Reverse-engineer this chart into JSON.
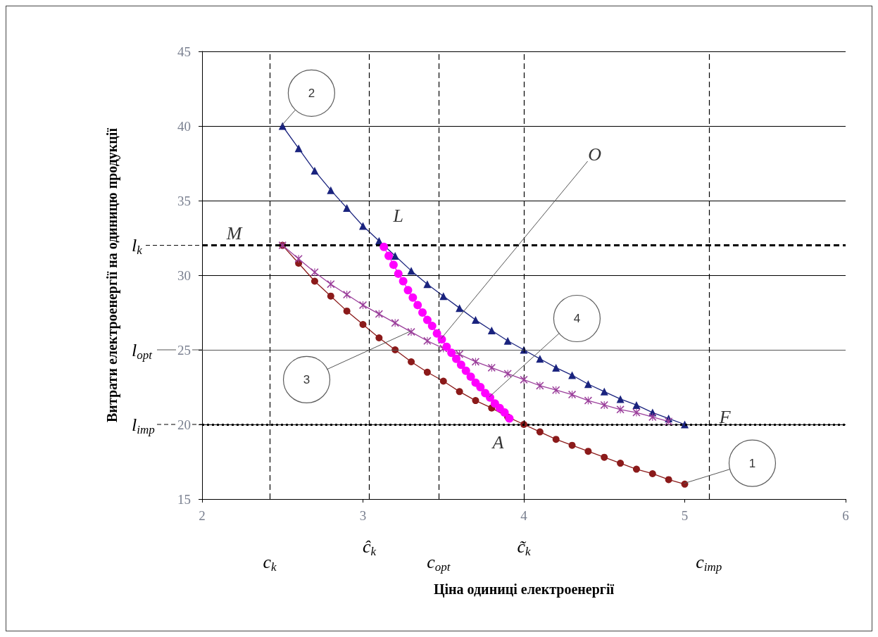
{
  "chart_data": {
    "type": "line",
    "xlabel": "Ціна одиниці електроенергії",
    "ylabel": "Витрати електроенергії на одиницю продукції",
    "xlim": [
      2,
      6
    ],
    "xticks": [
      2,
      3,
      4,
      5,
      6
    ],
    "ylim": [
      15,
      45
    ],
    "yticks": [
      15,
      20,
      25,
      30,
      35,
      40,
      45
    ],
    "grid": "y",
    "series": [
      {
        "color": "#8b1a1a",
        "marker": "circle",
        "x": [
          2.5,
          2.6,
          2.7,
          2.8,
          2.9,
          3.0,
          3.1,
          3.2,
          3.3,
          3.4,
          3.5,
          3.6,
          3.7,
          3.8,
          3.9,
          4.0,
          4.1,
          4.2,
          4.3,
          4.4,
          4.5,
          4.6,
          4.7,
          4.8,
          4.9,
          5.0
        ],
        "values": [
          32,
          30.8,
          29.6,
          28.6,
          27.6,
          26.7,
          25.8,
          25,
          24.2,
          23.5,
          22.9,
          22.2,
          21.6,
          21.1,
          20.5,
          20,
          19.5,
          19,
          18.6,
          18.2,
          17.8,
          17.4,
          17,
          16.7,
          16.3,
          16
        ]
      },
      {
        "color": "#1a237e",
        "marker": "triangle",
        "x": [
          2.5,
          2.6,
          2.7,
          2.8,
          2.9,
          3.0,
          3.1,
          3.2,
          3.3,
          3.4,
          3.5,
          3.6,
          3.7,
          3.8,
          3.9,
          4.0,
          4.1,
          4.2,
          4.3,
          4.4,
          4.5,
          4.6,
          4.7,
          4.8,
          4.9,
          5.0
        ],
        "values": [
          40,
          38.5,
          37,
          35.7,
          34.5,
          33.3,
          32.3,
          31.3,
          30.3,
          29.4,
          28.6,
          27.8,
          27,
          26.3,
          25.6,
          25,
          24.4,
          23.8,
          23.3,
          22.7,
          22.2,
          21.7,
          21.3,
          20.8,
          20.4,
          20
        ]
      },
      {
        "color": "#9b3f9b",
        "marker": "cross",
        "x": [
          2.5,
          2.6,
          2.7,
          2.8,
          2.9,
          3.0,
          3.1,
          3.2,
          3.3,
          3.4,
          3.5,
          3.6,
          3.7,
          3.8,
          3.9,
          4.0,
          4.1,
          4.2,
          4.3,
          4.4,
          4.5,
          4.6,
          4.7,
          4.8,
          4.9
        ],
        "values": [
          32,
          31.1,
          30.2,
          29.4,
          28.7,
          28,
          27.4,
          26.8,
          26.2,
          25.6,
          25.1,
          24.7,
          24.2,
          23.8,
          23.4,
          23,
          22.6,
          22.3,
          22,
          21.6,
          21.3,
          21,
          20.8,
          20.5,
          20.2
        ]
      },
      {
        "color": "#ff00ff",
        "marker": "circle",
        "x": [
          3.13,
          3.16,
          3.19,
          3.22,
          3.25,
          3.28,
          3.31,
          3.34,
          3.37,
          3.4,
          3.43,
          3.46,
          3.49,
          3.52,
          3.55,
          3.58,
          3.61,
          3.64,
          3.67,
          3.7,
          3.73,
          3.76,
          3.79,
          3.82,
          3.85,
          3.88,
          3.91
        ],
        "values": [
          31.9,
          31.3,
          30.7,
          30.1,
          29.6,
          29,
          28.5,
          28,
          27.5,
          27,
          26.6,
          26.1,
          25.7,
          25.2,
          24.8,
          24.4,
          24,
          23.6,
          23.2,
          22.8,
          22.5,
          22.1,
          21.8,
          21.4,
          21.1,
          20.8,
          20.4
        ]
      }
    ],
    "ref_lines": [
      {
        "axis": "y",
        "value": 32,
        "label": "l$_{k}$",
        "line_style": "dashed",
        "color": "#000000"
      },
      {
        "axis": "y",
        "value": 25,
        "label": "l$_{opt}$",
        "line_style": "solid",
        "color": "#555555"
      },
      {
        "axis": "y",
        "value": 20,
        "label": "l$_{imp}$",
        "line_style": "dotted",
        "color": "#000000"
      },
      {
        "axis": "x",
        "value": 2.42,
        "label": "c$_{k}$",
        "line_style": "dashed",
        "color": "#000000"
      },
      {
        "axis": "x",
        "value": 3.04,
        "label": "ĉ$_{k}$",
        "line_style": "dashed",
        "color": "#000000"
      },
      {
        "axis": "x",
        "value": 3.47,
        "label": "c$_{opt}$",
        "line_style": "dashed",
        "color": "#000000"
      },
      {
        "axis": "x",
        "value": 4.0,
        "label": "c̃$_{k}$",
        "line_style": "dashed",
        "color": "#000000"
      },
      {
        "axis": "x",
        "value": 5.15,
        "label": "c$_{imp}$",
        "line_style": "dashed",
        "color": "#000000"
      }
    ],
    "annotations": [
      "M",
      "L",
      {
        "text": "O",
        "x": 3.49,
        "y": 25.7
      },
      "A",
      "F",
      "1",
      "2",
      "3",
      "4"
    ]
  }
}
